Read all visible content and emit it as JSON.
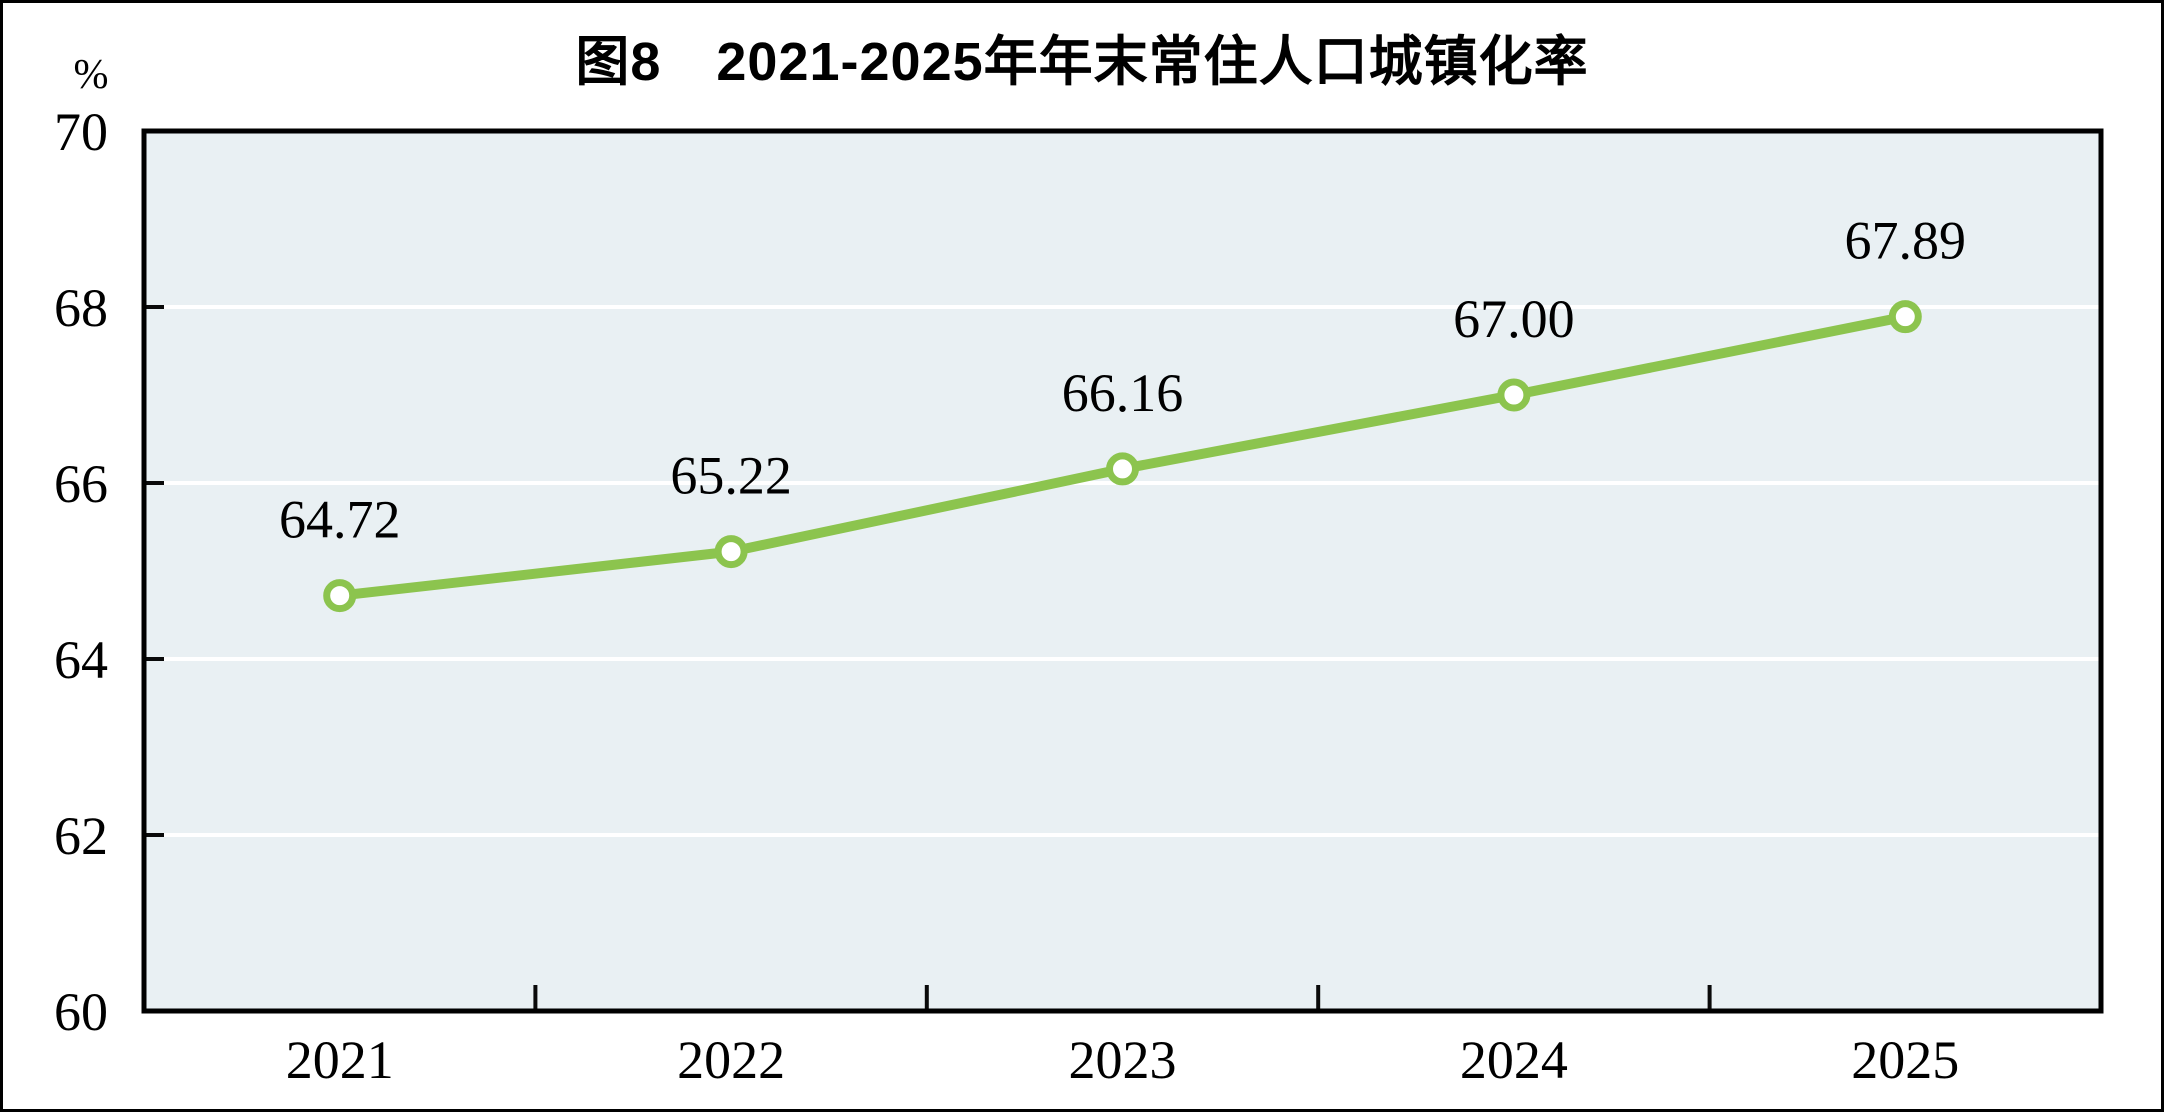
{
  "figure": {
    "title": "图8　2021-2025年年末常住人口城镇化率",
    "unit_label": "%"
  },
  "chart_data": {
    "type": "line",
    "title": "图8　2021-2025年年末常住人口城镇化率",
    "categories": [
      "2021",
      "2022",
      "2023",
      "2024",
      "2025"
    ],
    "values": [
      64.72,
      65.22,
      66.16,
      67.0,
      67.89
    ],
    "data_labels": [
      "64.72",
      "65.22",
      "66.16",
      "67.00",
      "67.89"
    ],
    "xlabel": "",
    "ylabel": "%",
    "ylim": [
      60,
      70
    ],
    "yticks": [
      60,
      62,
      64,
      66,
      68,
      70
    ],
    "grid": true,
    "legend": "none",
    "marker": "open-circle",
    "layout": {
      "x_ticks_between_categories": true,
      "points_at_band_centers": true
    },
    "colors": {
      "line": "#8CC44E",
      "marker_fill": "#FFFFFF",
      "plot_bg": "#E9F0F3",
      "grid": "#FFFFFF",
      "axis": "#0A0A0A",
      "text": "#000000",
      "frame": "#000000",
      "page_bg": "#FFFFFF"
    }
  }
}
